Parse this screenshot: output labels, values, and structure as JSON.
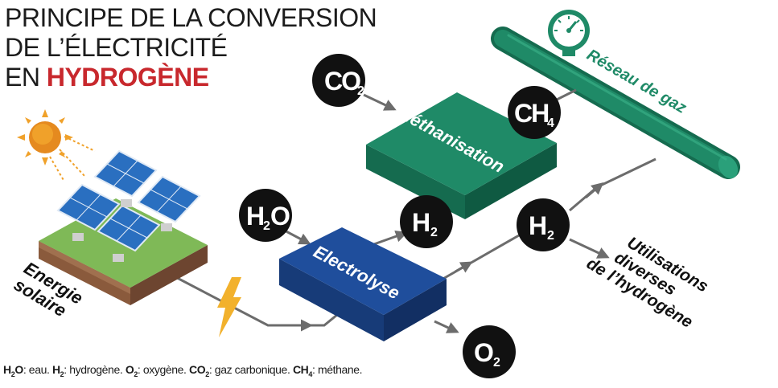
{
  "title": {
    "line1": "PRINCIPE DE LA CONVERSION",
    "line2": "DE L’ÉLECTRICITÉ",
    "line3_prefix": "EN ",
    "line3_accent": "HYDROGÈNE"
  },
  "boxes": {
    "methanisation": "Méthanisation",
    "electrolyse": "Electrolyse"
  },
  "pipe_label": "Réseau de gaz",
  "molecules": {
    "co2": {
      "base": "CO",
      "sub": "2"
    },
    "ch4": {
      "base": "CH",
      "sub": "4"
    },
    "h2o_left": "H",
    "h2o_sub": "2",
    "h2o_right": "O",
    "h2_a": {
      "base": "H",
      "sub": "2"
    },
    "h2_b": {
      "base": "H",
      "sub": "2"
    },
    "o2": {
      "base": "O",
      "sub": "2"
    }
  },
  "energy_label": {
    "line1": "Energie",
    "line2": "solaire"
  },
  "uses_label": {
    "line1": "Utilisations",
    "line2": "diverses",
    "line3": "de l’hydrogène"
  },
  "legend": {
    "h2o_base": "H",
    "h2o_sub": "2",
    "h2o_end": "O",
    "h2o_desc": ": eau. ",
    "h2_base": "H",
    "h2_sub": "2",
    "h2_desc": ": hydrogène. ",
    "o2_base": "O",
    "o2_sub": "2",
    "o2_desc": ": oxygène. ",
    "co2_base": "CO",
    "co2_sub": "2",
    "co2_desc": ": gaz carbonique. ",
    "ch4_base": "CH",
    "ch4_sub": "4",
    "ch4_desc": ": méthane."
  },
  "colors": {
    "green": "#1f8a67",
    "green_dark": "#156b4f",
    "blue": "#1f4e9c",
    "blue_dark": "#173b78",
    "red": "#c8282d",
    "arrow": "#707070",
    "sun": "#f0a12a",
    "lightning": "#f2b12c"
  }
}
